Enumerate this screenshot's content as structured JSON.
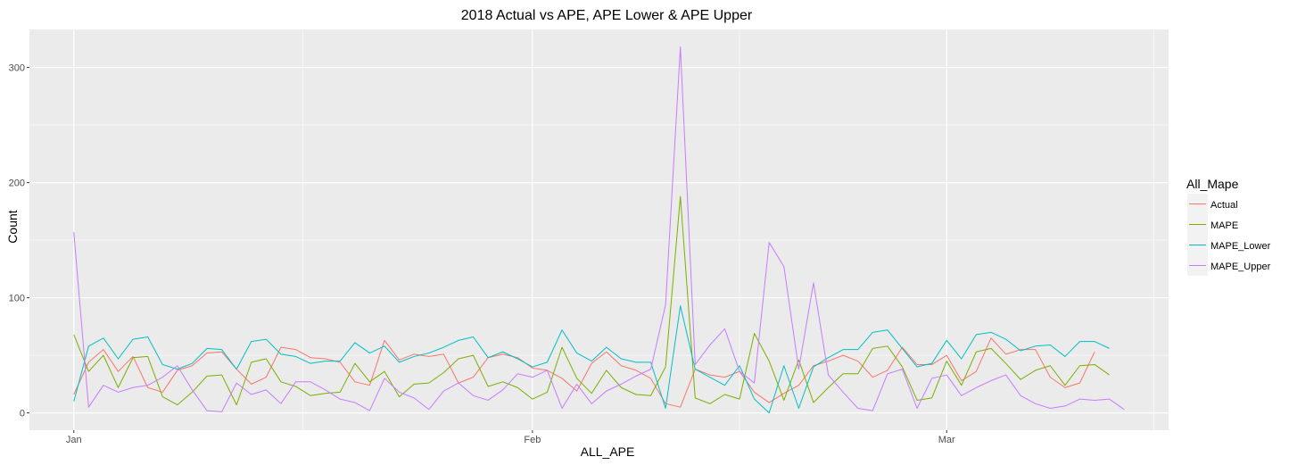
{
  "chart_data": {
    "type": "line",
    "title": "2018 Actual vs APE, APE Lower & APE Upper",
    "xlabel": "ALL_APE",
    "ylabel": "Count",
    "x_start": "2018-01-01",
    "x_ticks": [
      {
        "date": "2018-01-01",
        "label": "Jan"
      },
      {
        "date": "2018-02-01",
        "label": "Feb"
      },
      {
        "date": "2018-03-01",
        "label": "Mar"
      }
    ],
    "xlim": [
      "2017-12-29",
      "2018-03-16"
    ],
    "ylim": [
      -15,
      333
    ],
    "y_ticks": [
      0,
      100,
      200,
      300
    ],
    "grid": true,
    "legend": {
      "title": "All_Mape",
      "position": "right"
    },
    "series": [
      {
        "name": "Actual",
        "color": "#F8766D",
        "values": [
          16,
          44,
          55,
          36,
          49,
          22,
          18,
          37,
          41,
          52,
          53,
          38,
          25,
          31,
          57,
          55,
          48,
          47,
          44,
          27,
          24,
          63,
          46,
          51,
          49,
          51,
          26,
          31,
          48,
          51,
          48,
          39,
          37,
          30,
          19,
          43,
          53,
          41,
          37,
          30,
          8,
          5,
          38,
          33,
          31,
          36,
          18,
          9,
          17,
          24,
          41,
          45,
          50,
          45,
          31,
          37,
          57,
          42,
          42,
          50,
          28,
          36,
          65,
          51,
          55,
          55,
          31,
          22,
          26,
          53
        ]
      },
      {
        "name": "MAPE",
        "color": "#7CAE00",
        "values": [
          68,
          36,
          50,
          22,
          48,
          49,
          14,
          7,
          18,
          32,
          33,
          7,
          44,
          47,
          27,
          23,
          15,
          17,
          18,
          43,
          27,
          36,
          14,
          25,
          26,
          35,
          47,
          50,
          23,
          27,
          22,
          12,
          18,
          57,
          30,
          17,
          37,
          22,
          16,
          15,
          40,
          188,
          13,
          8,
          16,
          12,
          69,
          45,
          11,
          46,
          9,
          22,
          34,
          34,
          56,
          58,
          40,
          11,
          13,
          45,
          24,
          53,
          56,
          43,
          29,
          37,
          41,
          24,
          41,
          42,
          33
        ]
      },
      {
        "name": "MAPE_Lower",
        "color": "#00BFC4",
        "values": [
          10,
          58,
          65,
          47,
          64,
          66,
          42,
          38,
          43,
          56,
          55,
          38,
          62,
          64,
          51,
          49,
          43,
          45,
          45,
          61,
          52,
          58,
          44,
          49,
          52,
          57,
          63,
          66,
          48,
          53,
          47,
          40,
          44,
          72,
          52,
          45,
          57,
          47,
          44,
          44,
          4,
          93,
          38,
          31,
          24,
          41,
          12,
          0,
          41,
          4,
          40,
          48,
          55,
          55,
          70,
          72,
          56,
          40,
          43,
          63,
          47,
          68,
          70,
          64,
          54,
          58,
          59,
          49,
          62,
          62,
          56
        ]
      },
      {
        "name": "MAPE_Upper",
        "color": "#C77CFF",
        "values": [
          157,
          5,
          24,
          18,
          22,
          24,
          31,
          41,
          20,
          2,
          1,
          26,
          16,
          20,
          8,
          27,
          27,
          20,
          12,
          9,
          2,
          30,
          18,
          13,
          3,
          19,
          26,
          15,
          11,
          20,
          34,
          31,
          37,
          4,
          25,
          8,
          19,
          25,
          32,
          38,
          94,
          318,
          42,
          59,
          73,
          36,
          26,
          148,
          127,
          38,
          113,
          33,
          18,
          4,
          2,
          34,
          38,
          4,
          30,
          33,
          15,
          22,
          28,
          33,
          15,
          8,
          4,
          6,
          12,
          11,
          12,
          3
        ]
      }
    ]
  }
}
